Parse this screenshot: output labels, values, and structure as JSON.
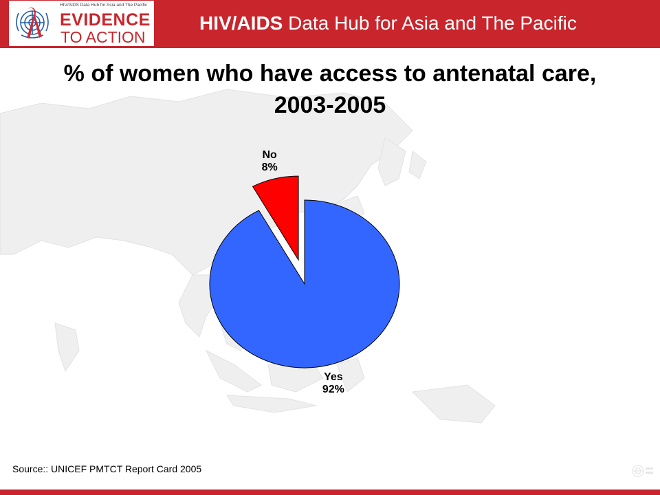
{
  "header": {
    "logo_tagline": "HIV/AIDS Data Hub for Asia and The Pacific",
    "logo_line1": "EVIDENCE",
    "logo_line2": "TO ACTION",
    "title_bold": "HIV/AIDS",
    "title_rest": " Data Hub for Asia and The Pacific",
    "color": "#c8252c"
  },
  "chart_data": {
    "type": "pie",
    "title": "% of women who have access to antenatal care, 2003-2005",
    "slices": [
      {
        "label": "Yes",
        "value": 92,
        "value_label": "92%",
        "color": "#3366ff",
        "exploded": false
      },
      {
        "label": "No",
        "value": 8,
        "value_label": "8%",
        "color": "#ff0000",
        "exploded": true
      }
    ],
    "start_angle_deg": 0,
    "direction": "clockwise"
  },
  "source": "Source:: UNICEF PMTCT Report Card 2005"
}
